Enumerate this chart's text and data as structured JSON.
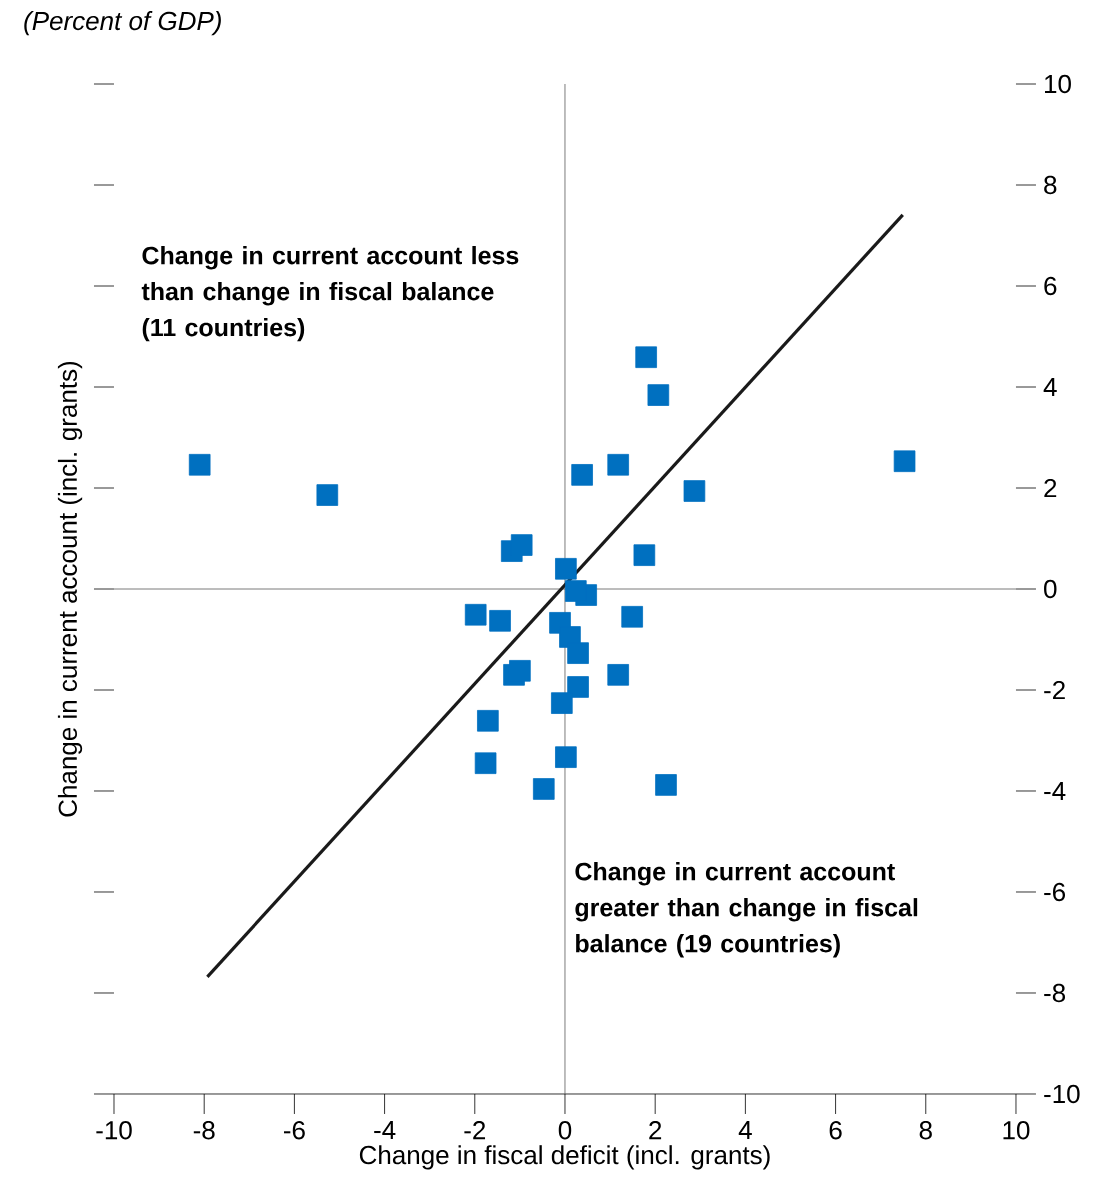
{
  "chart_data": {
    "type": "scatter",
    "subtitle": "(Percent of GDP)",
    "xlabel": "Change in fiscal deficit (incl. grants)",
    "ylabel": "Change in current account (incl. grants)",
    "xlim": [
      -10,
      10
    ],
    "ylim": [
      -10,
      10
    ],
    "xticks": [
      -10,
      -8,
      -6,
      -4,
      -2,
      0,
      2,
      4,
      6,
      8,
      10
    ],
    "yticks": [
      -10,
      -8,
      -6,
      -4,
      -2,
      0,
      2,
      4,
      6,
      8,
      10
    ],
    "annotations": [
      "Change in current account less than change in fiscal balance (11 countries)",
      "Change in current account greater than change in fiscal balance (19 countries)"
    ],
    "series": [
      {
        "color": "#0070c0",
        "marker": "square",
        "x": [
          -8.1,
          -5.27,
          -1.18,
          -0.96,
          0.38,
          1.18,
          1.8,
          2.07,
          2.87,
          7.53,
          1.76,
          0.02,
          0.47,
          0.24,
          -1.98,
          -1.44,
          1.49,
          -0.11,
          0.11,
          0.29,
          -1.13,
          -1.0,
          1.18,
          0.29,
          -0.07,
          -1.71,
          0.02,
          -1.76,
          -0.47,
          2.24
        ],
        "values": [
          2.46,
          1.86,
          0.75,
          0.87,
          2.26,
          2.46,
          4.59,
          3.84,
          1.94,
          2.53,
          0.67,
          0.4,
          -0.12,
          -0.04,
          -0.51,
          -0.63,
          -0.55,
          -0.67,
          -0.95,
          -1.27,
          -1.7,
          -1.62,
          -1.7,
          -1.94,
          -2.26,
          -2.61,
          -3.33,
          -3.45,
          -3.96,
          -3.88
        ]
      },
      {
        "type": "line",
        "color": "#1a1a1a",
        "x": [
          -7.93,
          7.49
        ],
        "values": [
          -7.68,
          7.41
        ]
      }
    ]
  }
}
